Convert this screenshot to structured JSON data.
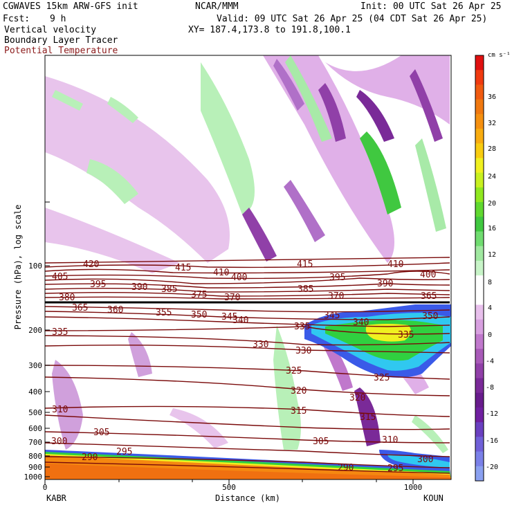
{
  "header": {
    "model": "CGWAVES 15km ARW-GFS init",
    "org": "NCAR/MMM",
    "init": "Init: 00 UTC Sat 26 Apr 25",
    "fcst_label": "Fcst:",
    "fcst_value": "9 h",
    "valid": "Valid: 09 UTC Sat 26 Apr 25 (04 CDT Sat 26 Apr 25)",
    "field1": "Vertical velocity",
    "xy": "XY= 187.4,173.8 to 191.8,100.1",
    "field2": "Boundary Layer Tracer",
    "field3": "Potential Temperature"
  },
  "axes": {
    "ylabel": "Pressure (hPa), log scale",
    "xlabel": "Distance (km)",
    "yticks": [
      "100",
      "200",
      "300",
      "400",
      "500",
      "600",
      "700",
      "800",
      "900",
      "1000"
    ],
    "xticks": [
      "0",
      "500",
      "1000"
    ],
    "left_station": "KABR",
    "right_station": "KOUN"
  },
  "colorbar": {
    "unit": "cm s⁻¹",
    "labels": [
      "36",
      "32",
      "28",
      "24",
      "20",
      "16",
      "12",
      "8",
      "4",
      "0",
      "-4",
      "-8",
      "-12",
      "-16",
      "-20"
    ],
    "colors": [
      "#e01010",
      "#f03a10",
      "#f05a10",
      "#f07810",
      "#f59010",
      "#f8ac10",
      "#f8cc10",
      "#f0f020",
      "#c8f020",
      "#90e820",
      "#60d830",
      "#40c840",
      "#70dc70",
      "#a0e8a0",
      "#c8f4c8",
      "#ffffff",
      "#ffffff",
      "#e8c0ec",
      "#d8a0e0",
      "#c078cc",
      "#a85ab8",
      "#9040a8",
      "#7a2a98",
      "#681c8c",
      "#7020a0",
      "#6a40c0",
      "#7060d8",
      "#7a80e8",
      "#8aa0f0"
    ]
  },
  "theta_labels": [
    "420",
    "405",
    "415",
    "410",
    "400",
    "415",
    "410",
    "395",
    "390",
    "385",
    "395",
    "390",
    "400",
    "380",
    "375",
    "370",
    "385",
    "370",
    "365",
    "365",
    "360",
    "355",
    "350",
    "345",
    "340",
    "345",
    "340",
    "350",
    "335",
    "335",
    "335",
    "330",
    "330",
    "325",
    "325",
    "320",
    "320",
    "310",
    "315",
    "315",
    "305",
    "305",
    "310",
    "300",
    "290",
    "295",
    "290",
    "295",
    "300"
  ]
}
